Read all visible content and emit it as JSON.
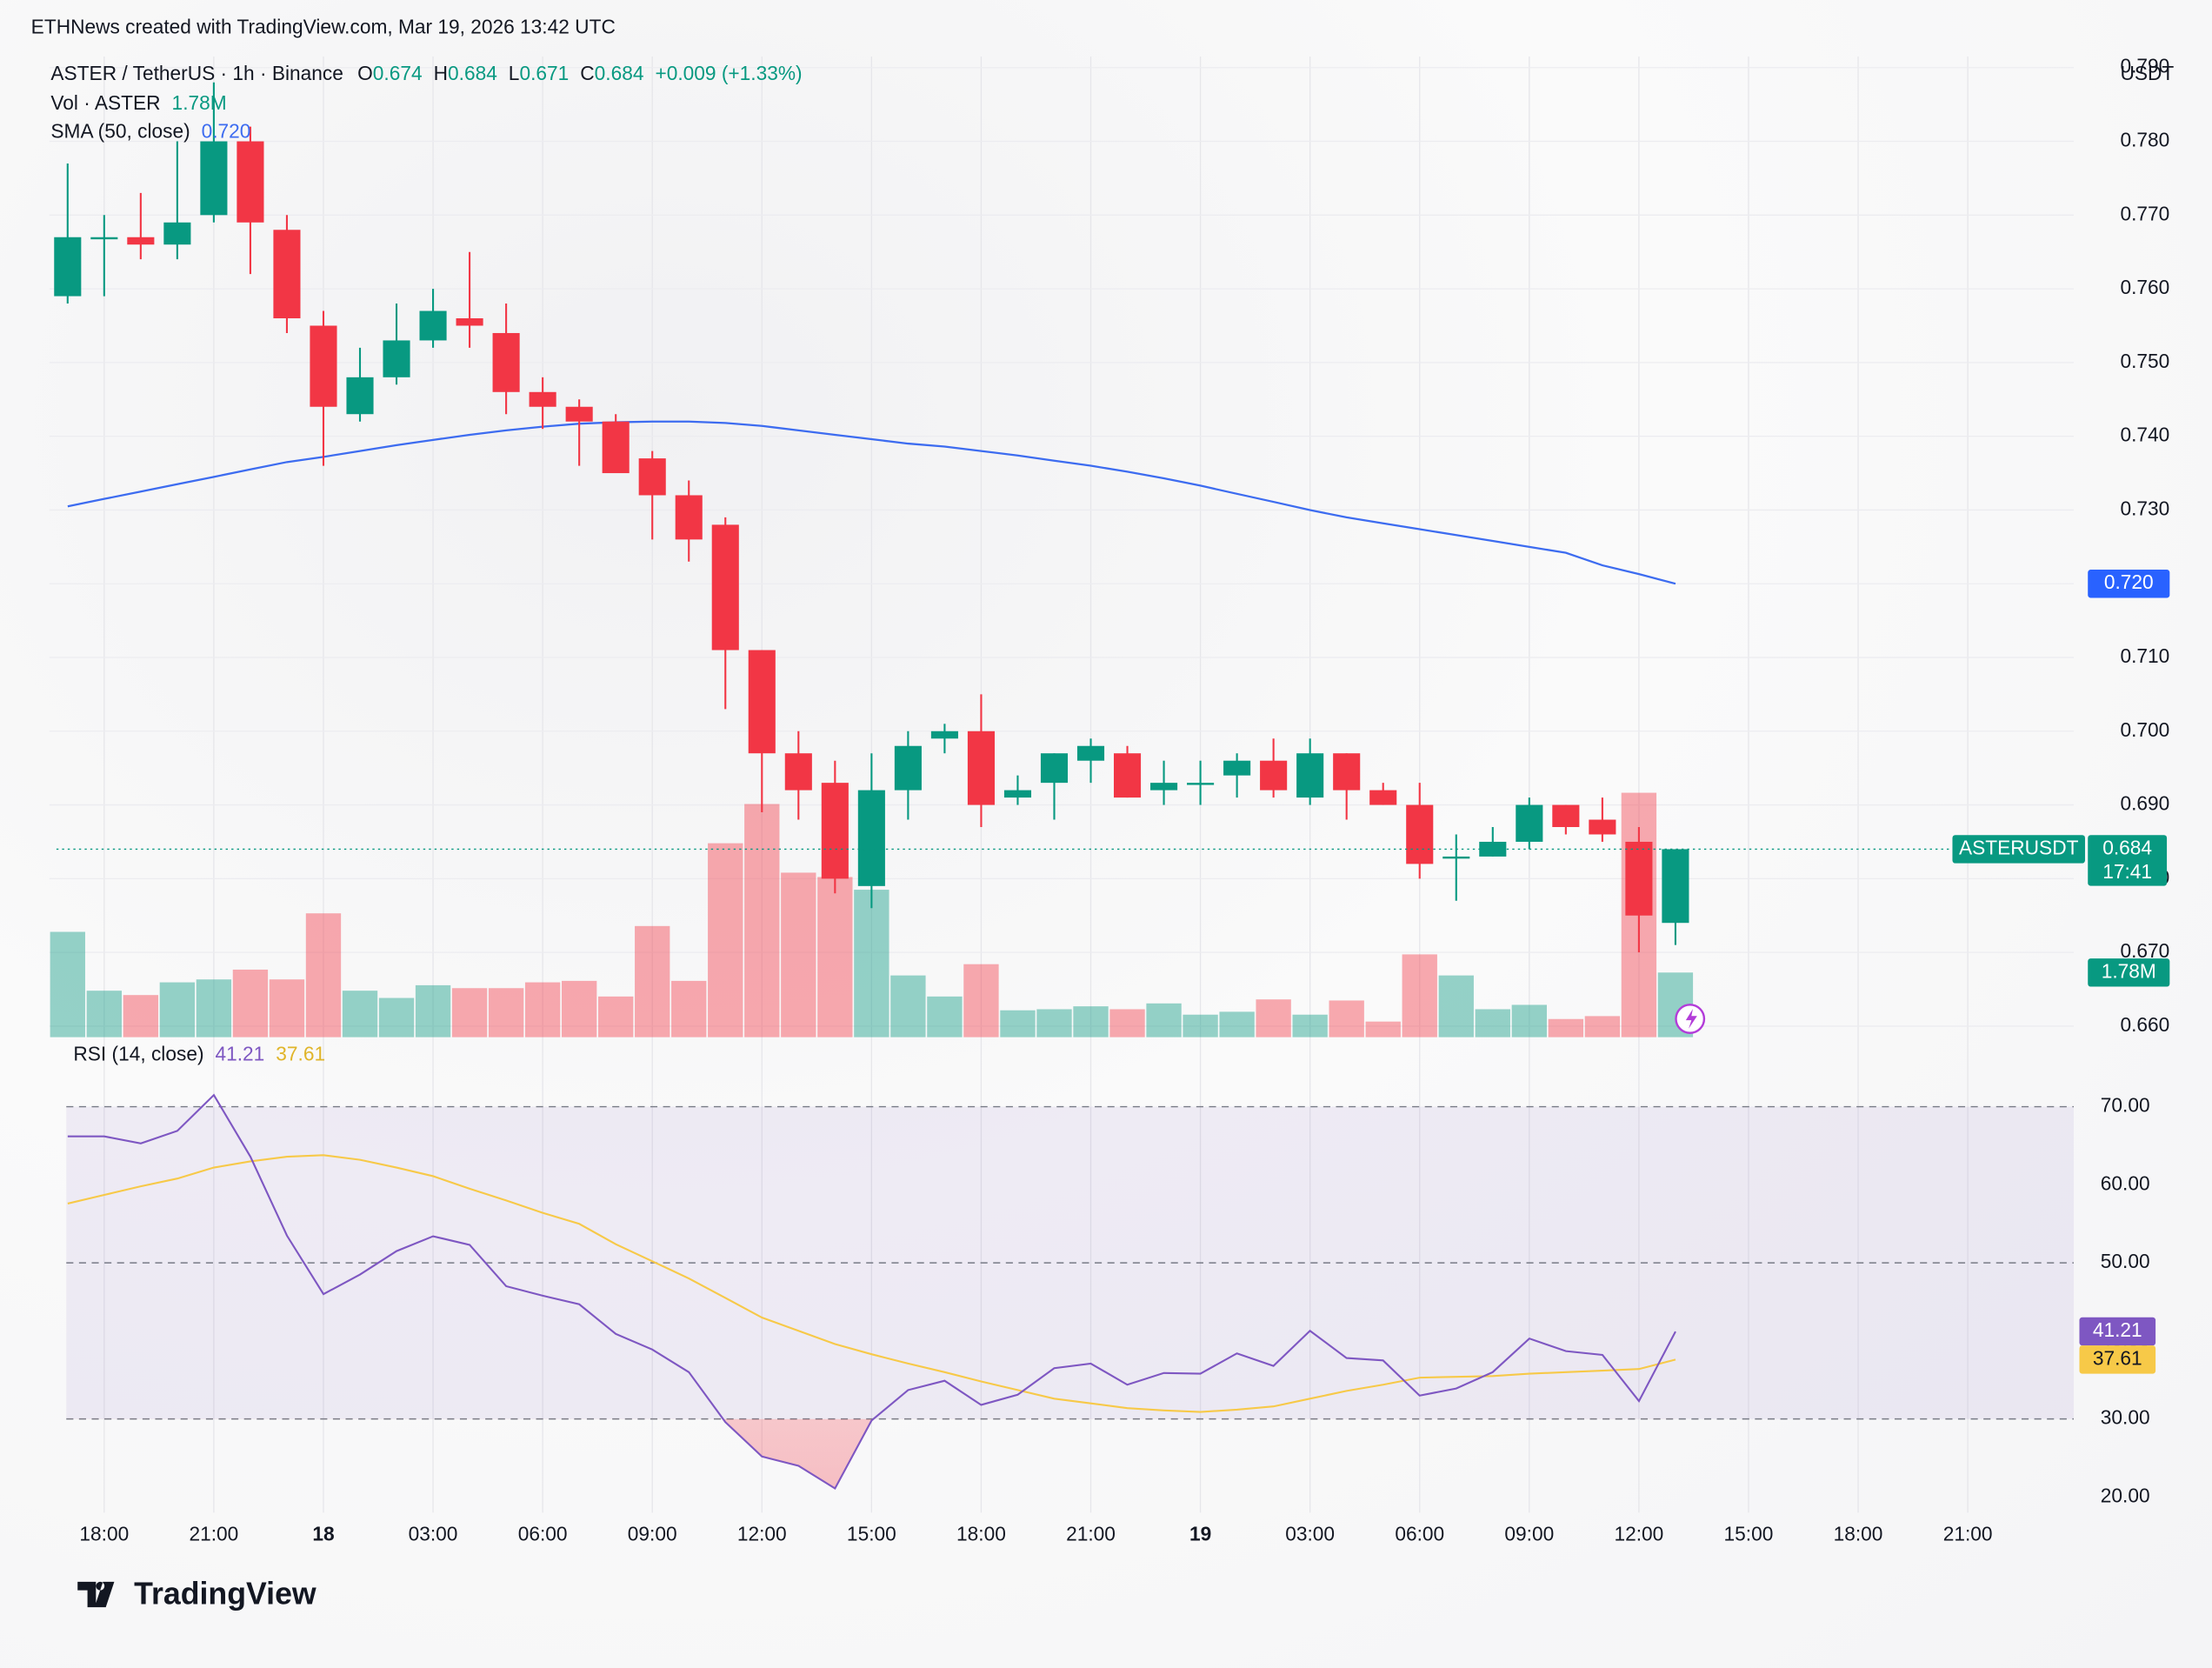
{
  "header": {
    "attribution": "ETHNews created with TradingView.com, Mar 19, 2026 13:42 UTC",
    "symbol": "ASTER / TetherUS · 1h · Binance",
    "ohlc": [
      {
        "key": "O",
        "value": "0.674"
      },
      {
        "key": "H",
        "value": "0.684"
      },
      {
        "key": "L",
        "value": "0.671"
      },
      {
        "key": "C",
        "value": "0.684"
      }
    ],
    "change": "+0.009 (+1.33%)",
    "volume_label": "Vol · ASTER",
    "volume_value": "1.78M",
    "sma_label": "SMA (50, close)",
    "sma_value": "0.720",
    "rsi_label": "RSI (14, close)",
    "rsi_value": "41.21",
    "rsi_ma_value": "37.61",
    "currency": "USDT"
  },
  "chart_data": [
    {
      "type": "candlestick",
      "up_color": "#089981",
      "down_color": "#f23645",
      "open": [
        0.759,
        0.767,
        0.767,
        0.766,
        0.77,
        0.78,
        0.768,
        0.755,
        0.743,
        0.748,
        0.753,
        0.756,
        0.754,
        0.746,
        0.744,
        0.742,
        0.737,
        0.732,
        0.728,
        0.711,
        0.697,
        0.693,
        0.679,
        0.692,
        0.699,
        0.7,
        0.691,
        0.693,
        0.696,
        0.697,
        0.692,
        0.693,
        0.694,
        0.696,
        0.691,
        0.697,
        0.692,
        0.69,
        0.683,
        0.683,
        0.685,
        0.69,
        0.688,
        0.685,
        0.674
      ],
      "high": [
        0.777,
        0.77,
        0.773,
        0.78,
        0.788,
        0.782,
        0.77,
        0.757,
        0.752,
        0.758,
        0.76,
        0.765,
        0.758,
        0.748,
        0.745,
        0.743,
        0.738,
        0.734,
        0.729,
        0.711,
        0.7,
        0.696,
        0.697,
        0.7,
        0.701,
        0.705,
        0.694,
        0.697,
        0.699,
        0.698,
        0.696,
        0.696,
        0.697,
        0.699,
        0.699,
        0.697,
        0.693,
        0.693,
        0.686,
        0.687,
        0.691,
        0.69,
        0.691,
        0.687,
        0.684
      ],
      "low": [
        0.758,
        0.759,
        0.764,
        0.764,
        0.769,
        0.762,
        0.754,
        0.736,
        0.742,
        0.747,
        0.752,
        0.752,
        0.743,
        0.741,
        0.736,
        0.735,
        0.726,
        0.723,
        0.703,
        0.689,
        0.688,
        0.678,
        0.676,
        0.688,
        0.697,
        0.687,
        0.69,
        0.688,
        0.693,
        0.691,
        0.69,
        0.69,
        0.691,
        0.691,
        0.69,
        0.688,
        0.69,
        0.68,
        0.677,
        0.683,
        0.684,
        0.686,
        0.685,
        0.67,
        0.671
      ],
      "close": [
        0.767,
        0.767,
        0.766,
        0.769,
        0.78,
        0.769,
        0.756,
        0.744,
        0.748,
        0.753,
        0.757,
        0.755,
        0.746,
        0.744,
        0.742,
        0.735,
        0.732,
        0.726,
        0.711,
        0.697,
        0.692,
        0.68,
        0.692,
        0.698,
        0.7,
        0.69,
        0.692,
        0.697,
        0.698,
        0.691,
        0.693,
        0.693,
        0.696,
        0.692,
        0.697,
        0.692,
        0.69,
        0.682,
        0.683,
        0.685,
        0.69,
        0.687,
        0.686,
        0.675,
        0.684
      ],
      "volume": [
        2.9,
        1.28,
        1.16,
        1.51,
        1.59,
        1.86,
        1.59,
        3.41,
        1.28,
        1.08,
        1.43,
        1.35,
        1.35,
        1.51,
        1.55,
        1.12,
        3.06,
        1.55,
        5.34,
        6.42,
        4.53,
        4.41,
        4.06,
        1.7,
        1.12,
        2.01,
        0.74,
        0.77,
        0.85,
        0.77,
        0.93,
        0.62,
        0.7,
        1.04,
        0.62,
        1.01,
        0.43,
        2.28,
        1.7,
        0.77,
        0.89,
        0.5,
        0.58,
        6.73,
        1.78
      ],
      "sma": {
        "color": "#3d6cf0",
        "values": [
          0.7305,
          0.7315,
          0.7325,
          0.7335,
          0.7345,
          0.7355,
          0.7365,
          0.7372,
          0.738,
          0.7388,
          0.7395,
          0.7402,
          0.7408,
          0.7413,
          0.7417,
          0.7419,
          0.742,
          0.742,
          0.7418,
          0.7414,
          0.7408,
          0.7402,
          0.7396,
          0.739,
          0.7386,
          0.738,
          0.7374,
          0.7367,
          0.736,
          0.7352,
          0.7343,
          0.7333,
          0.7322,
          0.7311,
          0.73,
          0.729,
          0.7282,
          0.7274,
          0.7266,
          0.7258,
          0.725,
          0.7242,
          0.7225,
          0.7213,
          0.72
        ]
      },
      "xlim": [
        -0.5,
        54.9
      ],
      "ylim": [
        0.6585,
        0.7915
      ],
      "yticks": [
        {
          "value": 0.66,
          "label": "0.660"
        },
        {
          "value": 0.67,
          "label": "0.670"
        },
        {
          "value": 0.68,
          "label": "0.680"
        },
        {
          "value": 0.69,
          "label": "0.690"
        },
        {
          "value": 0.7,
          "label": "0.700"
        },
        {
          "value": 0.71,
          "label": "0.710"
        },
        {
          "value": 0.72,
          "label": "0.720"
        },
        {
          "value": 0.73,
          "label": "0.730"
        },
        {
          "value": 0.74,
          "label": "0.740"
        },
        {
          "value": 0.75,
          "label": "0.750"
        },
        {
          "value": 0.76,
          "label": "0.760"
        },
        {
          "value": 0.77,
          "label": "0.770"
        },
        {
          "value": 0.78,
          "label": "0.780"
        },
        {
          "value": 0.79,
          "label": "0.790"
        }
      ],
      "y2lim": [
        0,
        27
      ],
      "grid": true,
      "tags": [
        {
          "label": "0.720",
          "value": 0.72,
          "color": "#2962ff"
        },
        {
          "name": "ASTERUSDT",
          "label": "0.684",
          "sub": "17:41",
          "value": 0.684,
          "color": "#089981"
        },
        {
          "label": "1.78M",
          "value": 1.78,
          "axis": "y2",
          "color": "#089981"
        }
      ]
    },
    {
      "type": "line",
      "series": [
        {
          "color": "#7e57c2",
          "values": [
            66.2,
            66.2,
            65.3,
            66.9,
            71.5,
            63.6,
            53.5,
            46.0,
            48.5,
            51.5,
            53.4,
            52.3,
            47.0,
            45.8,
            44.7,
            40.9,
            38.9,
            36.0,
            29.6,
            25.2,
            24.0,
            21.1,
            29.8,
            33.7,
            34.9,
            31.8,
            33.1,
            36.5,
            37.1,
            34.4,
            35.9,
            35.8,
            38.4,
            36.8,
            41.3,
            37.8,
            37.5,
            33.0,
            33.9,
            36.0,
            40.3,
            38.7,
            38.2,
            32.3,
            41.21
          ]
        },
        {
          "color": "#f7c948",
          "values": [
            57.6,
            58.7,
            59.8,
            60.8,
            62.2,
            63.0,
            63.6,
            63.8,
            63.2,
            62.2,
            61.1,
            59.5,
            58.0,
            56.4,
            55.0,
            52.4,
            50.2,
            48.0,
            45.5,
            43.0,
            41.3,
            39.6,
            38.3,
            37.1,
            36.0,
            34.8,
            33.7,
            32.6,
            32.0,
            31.4,
            31.1,
            30.9,
            31.2,
            31.6,
            32.6,
            33.6,
            34.4,
            35.3,
            35.4,
            35.5,
            35.8,
            36.0,
            36.2,
            36.4,
            37.61
          ]
        }
      ],
      "band": [
        30,
        70
      ],
      "midline": 50,
      "xlim": [
        -0.5,
        54.9
      ],
      "xticks": [
        {
          "value": 1,
          "label": "18:00"
        },
        {
          "value": 4,
          "label": "21:00"
        },
        {
          "value": 7,
          "label": "18"
        },
        {
          "value": 10,
          "label": "03:00"
        },
        {
          "value": 13,
          "label": "06:00"
        },
        {
          "value": 16,
          "label": "09:00"
        },
        {
          "value": 19,
          "label": "12:00"
        },
        {
          "value": 22,
          "label": "15:00"
        },
        {
          "value": 25,
          "label": "18:00"
        },
        {
          "value": 28,
          "label": "21:00"
        },
        {
          "value": 31,
          "label": "19"
        },
        {
          "value": 34,
          "label": "03:00"
        },
        {
          "value": 37,
          "label": "06:00"
        },
        {
          "value": 40,
          "label": "09:00"
        },
        {
          "value": 43,
          "label": "12:00"
        },
        {
          "value": 46,
          "label": "15:00"
        },
        {
          "value": 49,
          "label": "18:00"
        },
        {
          "value": 52,
          "label": "21:00"
        }
      ],
      "ylim": [
        18,
        78
      ],
      "yticks": [
        {
          "value": 20,
          "label": "20.00"
        },
        {
          "value": 30,
          "label": "30.00"
        },
        {
          "value": 40,
          "label": "40.00"
        },
        {
          "value": 50,
          "label": "50.00"
        },
        {
          "value": 60,
          "label": "60.00"
        },
        {
          "value": 70,
          "label": "70.00"
        }
      ],
      "tags": [
        {
          "label": "41.21",
          "value": 41.21,
          "color": "#7e57c2"
        },
        {
          "label": "37.61",
          "value": 37.61,
          "color": "#f7c948"
        }
      ]
    }
  ],
  "footer": {
    "logo": "TradingView"
  }
}
